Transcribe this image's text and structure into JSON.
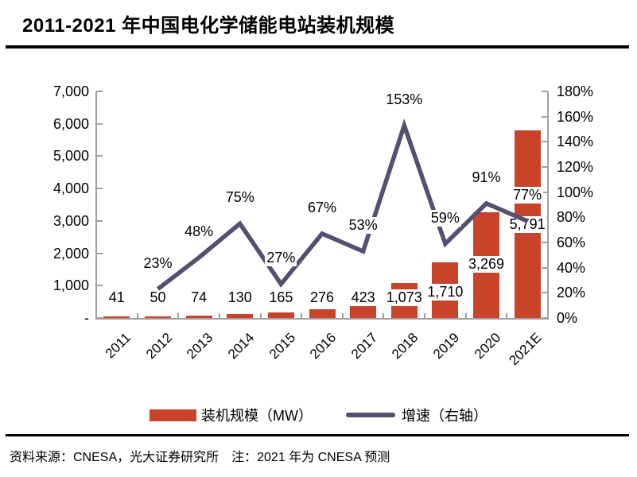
{
  "header": {
    "title": "2011-2021 年中国电化学储能电站装机规模"
  },
  "footer": {
    "text": "资料来源：CNESA，光大证券研究所　注：2021 年为 CNESA 预测"
  },
  "colors": {
    "bar": "#C7442A",
    "line": "#555070",
    "axis": "#A0A0A0",
    "text": "#000000",
    "rule": "#000000"
  },
  "chart_data": {
    "type": "bar",
    "subtype": "combo-bar-line",
    "title": "2011-2021 年中国电化学储能电站装机规模",
    "categories": [
      "2011",
      "2012",
      "2013",
      "2014",
      "2015",
      "2016",
      "2017",
      "2018",
      "2019",
      "2020",
      "2021E"
    ],
    "series": [
      {
        "name": "装机规模（MW）",
        "type": "bar",
        "axis": "left",
        "values": [
          41,
          50,
          74,
          130,
          165,
          276,
          423,
          1073,
          1710,
          3269,
          5791
        ],
        "labels": [
          "41",
          "50",
          "74",
          "130",
          "165",
          "276",
          "423",
          "1,073",
          "1,710",
          "3,269",
          "5,791"
        ]
      },
      {
        "name": "增速（右轴）",
        "type": "line",
        "axis": "right",
        "values": [
          null,
          23,
          48,
          75,
          27,
          67,
          53,
          153,
          59,
          91,
          77
        ],
        "labels": [
          null,
          "23%",
          "48%",
          "75%",
          "27%",
          "67%",
          "53%",
          "153%",
          "59%",
          "91%",
          "77%"
        ]
      }
    ],
    "left_axis": {
      "min": 0,
      "max": 7000,
      "tick_labels": [
        "7,000",
        "6,000",
        "5,000",
        "4,000",
        "3,000",
        "2,000",
        "1,000",
        "-"
      ]
    },
    "right_axis": {
      "min_label": "0%",
      "max_label": "180%",
      "max_percent": 180,
      "tick_labels": [
        "180%",
        "160%",
        "140%",
        "120%",
        "100%",
        "80%",
        "60%",
        "40%",
        "20%",
        "0%"
      ]
    },
    "grid": false,
    "legend_position": "bottom"
  }
}
